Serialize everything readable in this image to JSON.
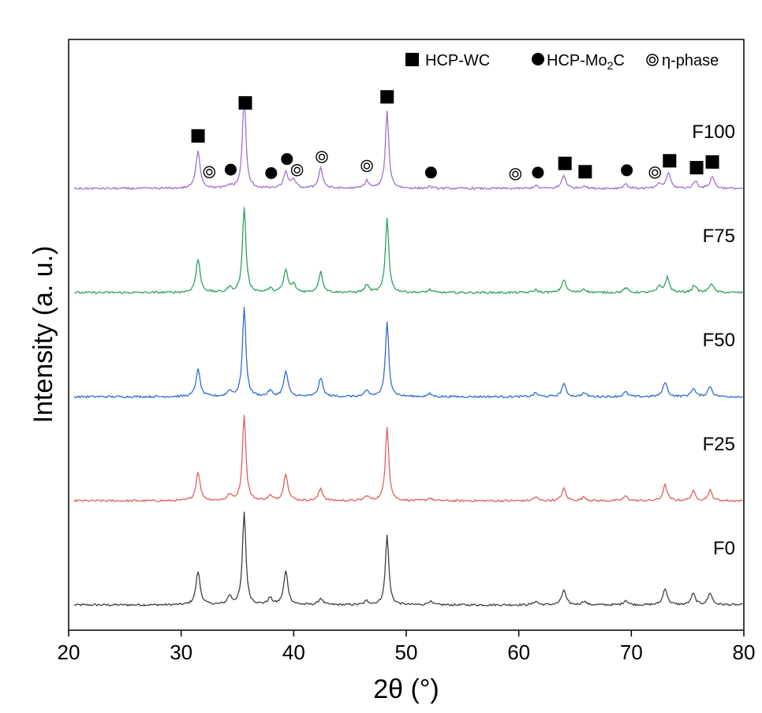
{
  "chart_data": {
    "type": "line",
    "title": "",
    "xlabel": "2θ (°)",
    "ylabel": "Intensity (a. u.)",
    "xlim": [
      20,
      80
    ],
    "xticks": [
      20,
      30,
      40,
      50,
      60,
      70,
      80
    ],
    "y_units": "arbitrary (normalized, offset per series)",
    "legend": {
      "position": "top-right",
      "entries": [
        {
          "symbol": "square",
          "label_pre": "HCP-WC",
          "label_sub": "",
          "label_post": ""
        },
        {
          "symbol": "circle",
          "label_pre": "HCP-Mo",
          "label_sub": "2",
          "label_post": "C"
        },
        {
          "symbol": "double-circle",
          "label_pre": "η-phase",
          "label_sub": "",
          "label_post": ""
        }
      ]
    },
    "x_range_start": 20.5,
    "x_range_end": 79.9,
    "x_range_step": 0.1,
    "series": [
      {
        "name": "F0",
        "color": "#404040",
        "offset": 0,
        "peaks": [
          [
            31.5,
            0.36
          ],
          [
            34.3,
            0.09
          ],
          [
            35.6,
            1.0
          ],
          [
            37.9,
            0.07
          ],
          [
            39.3,
            0.36
          ],
          [
            42.4,
            0.07
          ],
          [
            46.5,
            0.04
          ],
          [
            48.3,
            0.75
          ],
          [
            52.1,
            0.04
          ],
          [
            61.5,
            0.04
          ],
          [
            64.0,
            0.16
          ],
          [
            65.8,
            0.04
          ],
          [
            69.5,
            0.05
          ],
          [
            73.0,
            0.18
          ],
          [
            75.5,
            0.12
          ],
          [
            77.0,
            0.13
          ]
        ]
      },
      {
        "name": "F25",
        "color": "#e06060",
        "offset": 1,
        "peaks": [
          [
            31.5,
            0.31
          ],
          [
            34.3,
            0.06
          ],
          [
            35.6,
            0.93
          ],
          [
            37.9,
            0.05
          ],
          [
            39.3,
            0.29
          ],
          [
            42.4,
            0.13
          ],
          [
            46.5,
            0.05
          ],
          [
            48.3,
            0.8
          ],
          [
            52.1,
            0.03
          ],
          [
            61.5,
            0.04
          ],
          [
            64.0,
            0.13
          ],
          [
            65.8,
            0.04
          ],
          [
            69.5,
            0.05
          ],
          [
            73.0,
            0.17
          ],
          [
            75.5,
            0.1
          ],
          [
            77.0,
            0.11
          ]
        ]
      },
      {
        "name": "F50",
        "color": "#2f6fd0",
        "offset": 2,
        "peaks": [
          [
            31.5,
            0.29
          ],
          [
            34.3,
            0.06
          ],
          [
            35.6,
            0.96
          ],
          [
            37.9,
            0.06
          ],
          [
            39.3,
            0.27
          ],
          [
            42.4,
            0.2
          ],
          [
            46.5,
            0.06
          ],
          [
            48.3,
            0.8
          ],
          [
            52.1,
            0.03
          ],
          [
            61.5,
            0.04
          ],
          [
            64.0,
            0.14
          ],
          [
            65.8,
            0.04
          ],
          [
            69.5,
            0.05
          ],
          [
            73.0,
            0.16
          ],
          [
            75.5,
            0.09
          ],
          [
            77.0,
            0.11
          ]
        ]
      },
      {
        "name": "F75",
        "color": "#30a060",
        "offset": 3,
        "peaks": [
          [
            31.5,
            0.36
          ],
          [
            34.3,
            0.05
          ],
          [
            35.6,
            0.92
          ],
          [
            37.9,
            0.04
          ],
          [
            39.3,
            0.24
          ],
          [
            40.0,
            0.08
          ],
          [
            42.4,
            0.22
          ],
          [
            46.5,
            0.08
          ],
          [
            48.3,
            0.8
          ],
          [
            52.1,
            0.03
          ],
          [
            61.5,
            0.03
          ],
          [
            64.0,
            0.14
          ],
          [
            65.8,
            0.04
          ],
          [
            69.5,
            0.05
          ],
          [
            72.5,
            0.06
          ],
          [
            73.2,
            0.16
          ],
          [
            75.6,
            0.08
          ],
          [
            77.1,
            0.1
          ]
        ]
      },
      {
        "name": "F100",
        "color": "#a070d0",
        "offset": 4,
        "peaks": [
          [
            31.5,
            0.41
          ],
          [
            34.3,
            0.03
          ],
          [
            35.6,
            1.0
          ],
          [
            39.3,
            0.18
          ],
          [
            40.0,
            0.09
          ],
          [
            42.4,
            0.22
          ],
          [
            46.5,
            0.08
          ],
          [
            48.3,
            0.83
          ],
          [
            52.1,
            0.02
          ],
          [
            61.5,
            0.03
          ],
          [
            64.0,
            0.14
          ],
          [
            65.8,
            0.03
          ],
          [
            69.5,
            0.05
          ],
          [
            72.5,
            0.05
          ],
          [
            73.3,
            0.17
          ],
          [
            75.7,
            0.08
          ],
          [
            77.2,
            0.13
          ]
        ]
      }
    ],
    "phase_markers": {
      "series": "F100",
      "square": [
        31.5,
        35.7,
        48.3,
        64.1,
        65.9,
        73.4,
        75.8,
        77.2
      ],
      "circle": [
        34.4,
        38.0,
        39.4,
        52.2,
        61.7,
        69.6
      ],
      "double-circle": [
        32.5,
        40.3,
        42.5,
        46.5,
        59.7,
        72.1
      ]
    }
  }
}
